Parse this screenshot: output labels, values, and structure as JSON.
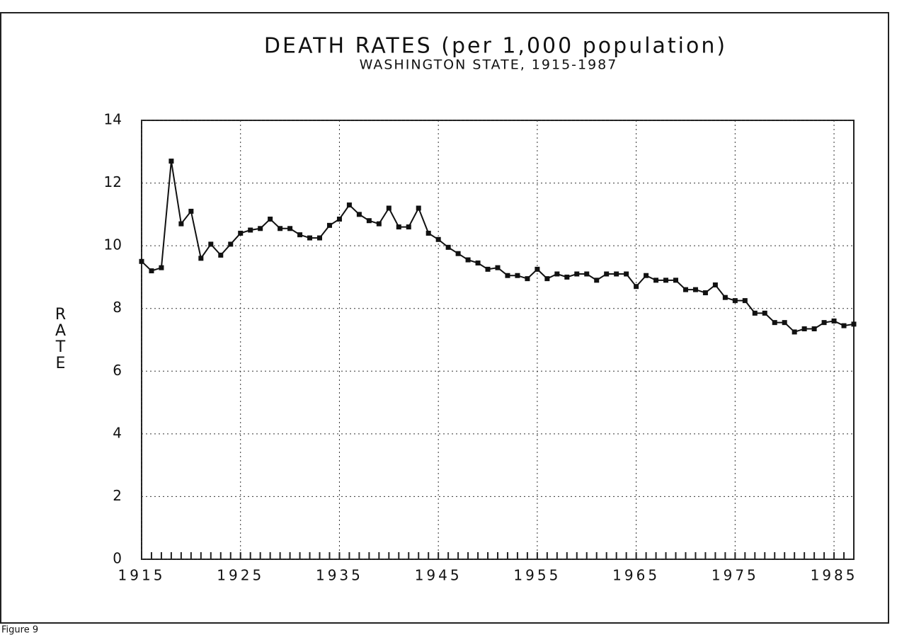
{
  "chart_data": {
    "type": "line",
    "title": "DEATH RATES (per 1,000 population)",
    "subtitle": "WASHINGTON STATE, 1915-1987",
    "y_label": "RATE",
    "note": "Figure 9",
    "x": [
      1915,
      1916,
      1917,
      1918,
      1919,
      1920,
      1921,
      1922,
      1923,
      1924,
      1925,
      1926,
      1927,
      1928,
      1929,
      1930,
      1931,
      1932,
      1933,
      1934,
      1935,
      1936,
      1937,
      1938,
      1939,
      1940,
      1941,
      1942,
      1943,
      1944,
      1945,
      1946,
      1947,
      1948,
      1949,
      1950,
      1951,
      1952,
      1953,
      1954,
      1955,
      1956,
      1957,
      1958,
      1959,
      1960,
      1961,
      1962,
      1963,
      1964,
      1965,
      1966,
      1967,
      1968,
      1969,
      1970,
      1971,
      1972,
      1973,
      1974,
      1975,
      1976,
      1977,
      1978,
      1979,
      1980,
      1981,
      1982,
      1983,
      1984,
      1985,
      1986,
      1987
    ],
    "series": [
      {
        "name": "Death rate",
        "color": "#111111",
        "values": [
          9.5,
          9.2,
          9.3,
          12.7,
          10.7,
          11.1,
          9.6,
          10.05,
          9.7,
          10.05,
          10.4,
          10.5,
          10.55,
          10.85,
          10.55,
          10.55,
          10.35,
          10.25,
          10.25,
          10.65,
          10.85,
          11.3,
          11.0,
          10.8,
          10.7,
          11.2,
          10.6,
          10.6,
          11.2,
          10.4,
          10.2,
          9.95,
          9.75,
          9.55,
          9.45,
          9.25,
          9.3,
          9.05,
          9.05,
          8.95,
          9.25,
          8.95,
          9.1,
          9.0,
          9.1,
          9.1,
          8.9,
          9.1,
          9.1,
          9.1,
          8.7,
          9.05,
          8.9,
          8.9,
          8.9,
          8.6,
          8.6,
          8.5,
          8.75,
          8.35,
          8.25,
          8.25,
          7.85,
          7.85,
          7.55,
          7.55,
          7.25,
          7.35,
          7.35,
          7.55,
          7.6,
          7.45,
          7.5
        ]
      }
    ],
    "xlim": [
      1915,
      1987
    ],
    "xticks": [
      1915,
      1925,
      1935,
      1945,
      1955,
      1965,
      1975,
      1985
    ],
    "ylim": [
      0,
      14
    ],
    "yticks": [
      0,
      2,
      4,
      6,
      8,
      10,
      12,
      14
    ],
    "grid": true
  }
}
